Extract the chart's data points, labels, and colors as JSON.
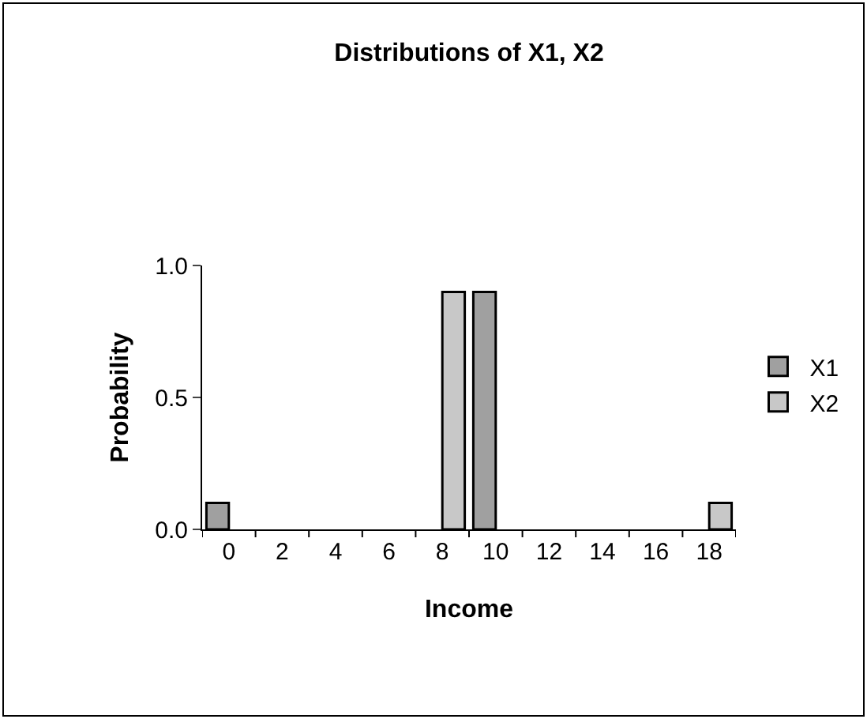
{
  "chart_data": {
    "type": "bar",
    "title": "Distributions of X1, X2",
    "xlabel": "Income",
    "ylabel": "Probability",
    "categories": [
      "0",
      "2",
      "4",
      "6",
      "8",
      "10",
      "12",
      "14",
      "16",
      "18"
    ],
    "series": [
      {
        "name": "X1",
        "color": "#a0a0a0",
        "values": [
          0.1,
          null,
          null,
          null,
          null,
          0.9,
          null,
          null,
          null,
          null
        ]
      },
      {
        "name": "X2",
        "color": "#c8c8c8",
        "values": [
          null,
          null,
          null,
          null,
          0.9,
          null,
          null,
          null,
          null,
          0.1
        ]
      }
    ],
    "ylim": [
      0,
      1
    ],
    "yticks": [
      {
        "value": 0,
        "label": "0.0"
      },
      {
        "value": 0.5,
        "label": "0.5"
      },
      {
        "value": 1,
        "label": "1.0"
      }
    ],
    "legend": "right"
  }
}
